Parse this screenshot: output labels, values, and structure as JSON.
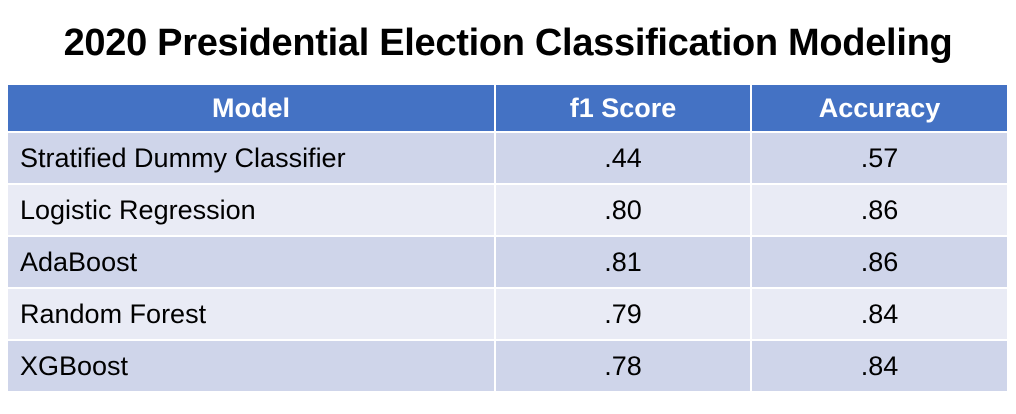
{
  "chart_data": {
    "type": "table",
    "title": "2020 Presidential Election Classification Modeling",
    "columns": [
      "Model",
      "f1 Score",
      "Accuracy"
    ],
    "rows": [
      {
        "model": "Stratified Dummy Classifier",
        "f1": ".44",
        "accuracy": ".57"
      },
      {
        "model": "Logistic Regression",
        "f1": ".80",
        "accuracy": ".86"
      },
      {
        "model": "AdaBoost",
        "f1": ".81",
        "accuracy": ".86"
      },
      {
        "model": "Random Forest",
        "f1": ".79",
        "accuracy": ".84"
      },
      {
        "model": "XGBoost",
        "f1": ".78",
        "accuracy": ".84"
      }
    ]
  },
  "colors": {
    "header_bg": "#4472c4",
    "row_band_1": "#cfd5ea",
    "row_band_2": "#e9ebf5"
  }
}
